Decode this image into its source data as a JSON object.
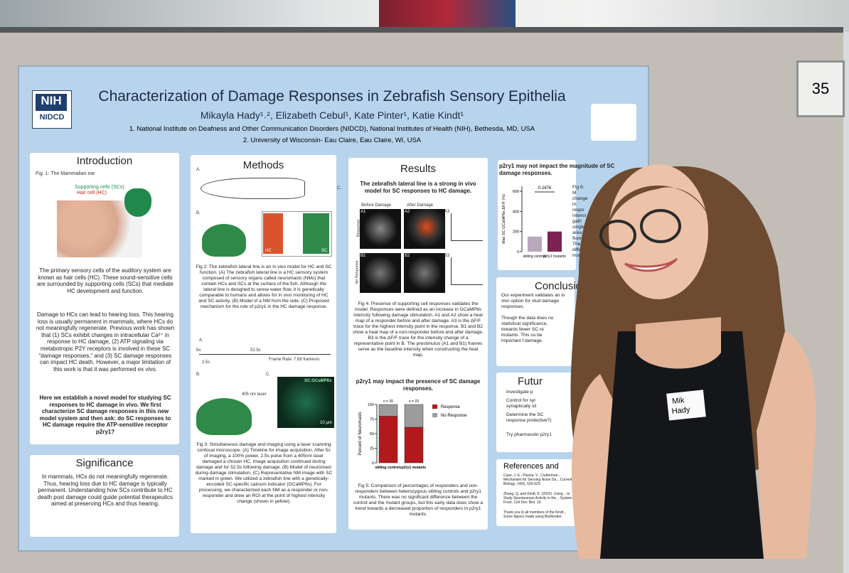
{
  "board_number": "35",
  "name_tag": [
    "Mik",
    "Hady"
  ],
  "poster": {
    "logo": "NIH",
    "logo_sub": "NIDCD",
    "title": "Characterization of Damage Responses in Zebrafish Sensory Epithelia",
    "authors": "Mikayla Hady¹˒², Elizabeth Cebul¹, Kate Pinter¹, Katie Kindt¹",
    "affiliations": [
      "1.   National Institute on Deafness and Other Communication Disorders (NIDCD), National Institutes of Health (NIH), Bethesda, MD, USA",
      "2. University of Wisconsin- Eau Claire, Eau Claire, WI, USA"
    ],
    "introduction": {
      "heading": "Introduction",
      "fig": "Fig. 1: The Mammalian ear",
      "label_sc": "Supporting cells (SCs)",
      "label_hc": "Hair cell (HC)",
      "paragraphs": [
        "The primary sensory cells of the auditory system are known as hair cells (HC). These sound-sensitive cells are surrounded by supporting cells (SCs) that mediate HC development and function.",
        "Damage to HCs can lead to hearing loss. This hearing loss is usually permanent in mammals, where HCs do not meaningfully regenerate. Previous work has shown that (1) SCs exhibit changes in intracellular Ca²⁺ in response to HC damage, (2) ATP signaling via metabotropic P2Y receptors is involved in these SC “damage responses,” and (3) SC damage responses can impact HC death. However, a major limitation of this work is that it was performed ex vivo."
      ],
      "bold": "Here we establish a novel model for studying SC responses to HC damage in vivo. We first characterize SC damage responses in this new model system and then ask: do SC responses to HC damage require the ATP-sensitive receptor p2ry1?"
    },
    "significance": {
      "heading": "Significance",
      "text": "In mammals, HCs do not meaningfully regenerate. Thus, hearing loss due to HC damage is typically permanent. Understanding how SCs contribute to HC death post damage could guide potential therapeutics aimed at preserving HCs and thus hearing."
    },
    "methods": {
      "heading": "Methods",
      "labels": [
        "A.",
        "B.",
        "C.",
        "A.",
        "B.",
        "C."
      ],
      "hc": "HC",
      "sc": "SC",
      "fig2": "Fig 2: The zebrafish lateral line is an in vivo model for HC and SC function. (A) The zebrafish lateral line is a HC sensory system composed of sensory organs called neuromasts (NMs) that contain HCs and SCs at the surface of the fish. Although the lateral line is designed to sense water flow, it is genetically comparable to humans and allows for in vivo monitoring of HC and SC activity. (B) Model of a NM from the side. (C) Proposed mechanism for the role of p2ry1 in the HC damage response.",
      "timeline": [
        "5s",
        "52.5s",
        "2.5s",
        "Frame Rate: 7.69 frames/s"
      ],
      "laser": "405 nm laser",
      "stain": "SC:GCaMP6s",
      "scale": "10 µm",
      "fig3": "Fig 3: Simultaneous damage and imaging using a laser scanning confocal microscope. (A) Timeline for image acquisition. After 5s of imaging, a 100% power, 2.5s pulse from a 405nm laser damaged a chosen HC. Image acquisition continued during damage and for 52.5s following damage. (B) Model of neuromast during damage stimulation. (C) Representative NM image with SC marked in green. We utilized a zebrafish line with a genetically-encoded SC-specific calcium indicator (GCaMP6s). For processing, we characterized each NM as a responder or non-responder and drew an ROI at the point of highest intensity change (shown in yellow)."
    },
    "results": {
      "heading": "Results",
      "subhead": "The zebrafish lateral line is a strong in vivo model for SC responses to HC damage.",
      "before": "Before Damage",
      "after": "After Damage",
      "rows": [
        "Response",
        "No Response"
      ],
      "panels": [
        "A1",
        "A2",
        "A3",
        "B1",
        "B2",
        "B3"
      ],
      "fig4": "Fig 4: Presence of supporting cell responses validates the model. Responses were defined as an increase in GCaMP6s intensity following damage stimulation. A1 and A2 show a heat map of a responder before and after damage. A3 is the ΔF/F trace for the highest intensity point in the response. B1 and B2 show a heat map of a non-responder before and after damage. B3 is the ΔF/F trace for the intensity change of a representative point in B. The prestimulus (A1 and B1) frames serve as the baseline intensity when constructing the heat map.",
      "subhead2": "p2ry1 may impact the presence of SC damage responses.",
      "fig5": "Fig 5: Comparison of percentages of responders and non-responders between heterozygous sibling controls and p2ry1 mutants. There was no significant difference between the control and the mutant groups, but this early data does show a trend towards a decreased proportion of responders in p2ry1 mutants."
    },
    "fig5_chart": {
      "type": "bar",
      "y_label": "Percent of Neuromasts",
      "categories": [
        "sibling controls",
        "p2ry1 mutants"
      ],
      "n_labels": [
        "n = 20",
        "n = 23"
      ],
      "series": [
        {
          "name": "Response",
          "color": "#b3191c",
          "values": [
            80,
            61
          ]
        },
        {
          "name": "No Response",
          "color": "#9c9c9c",
          "values": [
            20,
            39
          ]
        }
      ],
      "ylim": [
        0,
        100
      ],
      "yticks": [
        0,
        25,
        50,
        75,
        100
      ]
    },
    "fig6_chart": {
      "type": "bar",
      "title": "p2ry1 may not impact the magnitude of SC damage responses.",
      "y_label": "Max SC GCaMP6s ΔF/F (%)",
      "categories": [
        "sibling controls",
        "p2ry1 mutants"
      ],
      "values": [
        150,
        200
      ],
      "colors": [
        "#b9a8bc",
        "#7d2352"
      ],
      "annotation": "0.2476",
      "ylim": [
        0,
        650
      ],
      "yticks": [
        0,
        200,
        400,
        600
      ]
    },
    "fig6_fragment": "Fig 6: M change in respo intensi gath single area fluor The differ mutants",
    "conclusions": {
      "heading": "Conclusio",
      "items": [
        "Our experiment validates an in vivo option for stud damage responses.",
        "Though the data does no statistical significance, towards fewer SC re mutants. This su be important f damage."
      ]
    },
    "future": {
      "heading": "Futur",
      "items": [
        "Investigate p",
        "Control for syr synaptically sil",
        "Determine the SC response protective?)",
        "Try pharmacolo p2ry1"
      ]
    },
    "references": {
      "heading": "References and",
      "items": [
        "Case, J. E., Piazza, V., Ciuberman... Mechanism for Sensing Noise Da... Current Biology, 14(6), 526-529",
        "Zhang, Q. and Kindt, K. (2022). Using... to Study Spontaneous Activity in the... System. Front. Cell Dev. Biol. 10.",
        "Thank you to all members of the Kindt... Some figures made using BioRender."
      ]
    }
  }
}
